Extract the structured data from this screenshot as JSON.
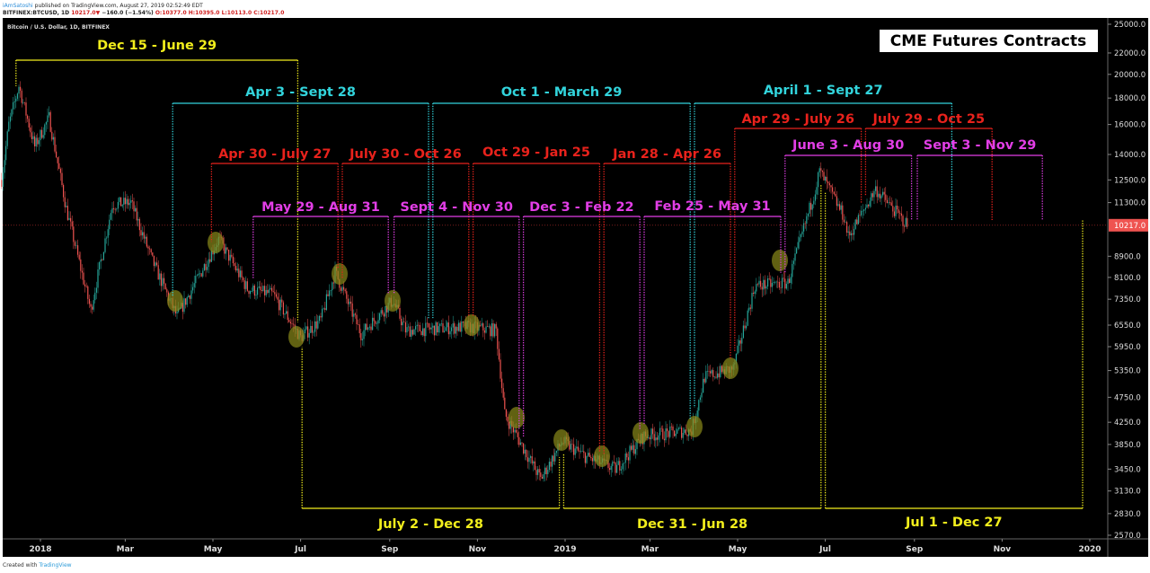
{
  "header": {
    "author": "iAmSatoshi",
    "published": "published on TradingView.com, August 27, 2019 02:52:49 EDT",
    "symbol": "BITFINEX:BTCUSD, 1D",
    "last": "10217.0",
    "change_arrow": "▼",
    "change": "−160.0 (−1.54%)",
    "ohlc": {
      "o": "O:10377.0",
      "h": "H:10395.0",
      "l": "L:10113.0",
      "c": "C:10217.0"
    }
  },
  "chart_title": "Bitcoin / U.S. Dollar, 1D, BITFINEX",
  "badge": "CME Futures Contracts",
  "footer": {
    "prefix": "Created with",
    "brand": "TradingView"
  },
  "colors": {
    "up": "#26a69a",
    "down": "#ef5350",
    "yellow": "#f2ee1c",
    "cyan": "#32d4dc",
    "red": "#e8221c",
    "magenta": "#e23ee6",
    "highlight": "#8a8a1a"
  },
  "chart_data": {
    "type": "candlestick",
    "scale": "log",
    "y_ticks": [
      25000,
      22000,
      20000,
      18000,
      16000,
      14000,
      12500,
      11300,
      8900,
      8100,
      7350,
      6550,
      5950,
      5350,
      4750,
      4250,
      3850,
      3450,
      3130,
      2830,
      2570
    ],
    "last_price": "10217.0",
    "x_ticks": [
      {
        "label": "2018",
        "date": "2018-01-01"
      },
      {
        "label": "Mar",
        "date": "2018-03-01"
      },
      {
        "label": "May",
        "date": "2018-05-01"
      },
      {
        "label": "Jul",
        "date": "2018-07-01"
      },
      {
        "label": "Sep",
        "date": "2018-09-01"
      },
      {
        "label": "Nov",
        "date": "2018-11-01"
      },
      {
        "label": "2019",
        "date": "2019-01-01"
      },
      {
        "label": "Mar",
        "date": "2019-03-01"
      },
      {
        "label": "May",
        "date": "2019-05-01"
      },
      {
        "label": "Jul",
        "date": "2019-07-01"
      },
      {
        "label": "Sep",
        "date": "2019-09-01"
      },
      {
        "label": "Nov",
        "date": "2019-11-01"
      },
      {
        "label": "2020",
        "date": "2020-01-01"
      }
    ],
    "approx_close": [
      [
        "2017-12-05",
        12500
      ],
      [
        "2017-12-10",
        16000
      ],
      [
        "2017-12-17",
        19000
      ],
      [
        "2017-12-28",
        14500
      ],
      [
        "2018-01-07",
        16500
      ],
      [
        "2018-01-19",
        11000
      ],
      [
        "2018-02-05",
        7000
      ],
      [
        "2018-02-20",
        11200
      ],
      [
        "2018-03-05",
        11300
      ],
      [
        "2018-03-20",
        8700
      ],
      [
        "2018-04-06",
        6800
      ],
      [
        "2018-05-05",
        9600
      ],
      [
        "2018-05-25",
        7700
      ],
      [
        "2018-06-12",
        7500
      ],
      [
        "2018-07-01",
        6200
      ],
      [
        "2018-07-15",
        6700
      ],
      [
        "2018-07-25",
        8300
      ],
      [
        "2018-08-12",
        6300
      ],
      [
        "2018-09-03",
        7300
      ],
      [
        "2018-09-12",
        6400
      ],
      [
        "2018-10-25",
        6500
      ],
      [
        "2018-11-14",
        6400
      ],
      [
        "2018-11-20",
        4400
      ],
      [
        "2018-12-15",
        3300
      ],
      [
        "2018-12-30",
        3900
      ],
      [
        "2019-01-15",
        3650
      ],
      [
        "2019-02-05",
        3450
      ],
      [
        "2019-02-25",
        4000
      ],
      [
        "2019-03-30",
        4100
      ],
      [
        "2019-04-08",
        5200
      ],
      [
        "2019-04-28",
        5400
      ],
      [
        "2019-05-13",
        7800
      ],
      [
        "2019-06-05",
        7900
      ],
      [
        "2019-06-24",
        12000
      ],
      [
        "2019-06-27",
        13000
      ],
      [
        "2019-07-14",
        10600
      ],
      [
        "2019-07-17",
        9700
      ],
      [
        "2019-08-05",
        12000
      ],
      [
        "2019-08-27",
        10217
      ]
    ],
    "annotations": [
      {
        "label": "Dec 15 - June 29",
        "start": "2017-12-15",
        "end": "2018-06-29",
        "color": "yellow"
      },
      {
        "label": "Apr 3 - Sept 28",
        "start": "2018-04-03",
        "end": "2018-09-28",
        "color": "cyan"
      },
      {
        "label": "Oct 1 - March 29",
        "start": "2018-10-01",
        "end": "2019-03-29",
        "color": "cyan"
      },
      {
        "label": "April 1 - Sept 27",
        "start": "2019-04-01",
        "end": "2019-09-27",
        "color": "cyan"
      },
      {
        "label": "Apr 30 - July 27",
        "start": "2018-04-30",
        "end": "2018-07-27",
        "color": "red"
      },
      {
        "label": "July 30 - Oct 26",
        "start": "2018-07-30",
        "end": "2018-10-26",
        "color": "red"
      },
      {
        "label": "Oct 29 - Jan 25",
        "start": "2018-10-29",
        "end": "2019-01-25",
        "color": "red"
      },
      {
        "label": "Jan 28 - Apr 26",
        "start": "2019-01-28",
        "end": "2019-04-26",
        "color": "red"
      },
      {
        "label": "Apr 29 - July 26",
        "start": "2019-04-29",
        "end": "2019-07-26",
        "color": "red"
      },
      {
        "label": "July 29 - Oct 25",
        "start": "2019-07-29",
        "end": "2019-10-25",
        "color": "red"
      },
      {
        "label": "May 29 - Aug 31",
        "start": "2018-05-29",
        "end": "2018-08-31",
        "color": "magenta"
      },
      {
        "label": "Sept 4 - Nov 30",
        "start": "2018-09-04",
        "end": "2018-11-30",
        "color": "magenta"
      },
      {
        "label": "Dec 3 - Feb 22",
        "start": "2018-12-03",
        "end": "2019-02-22",
        "color": "magenta"
      },
      {
        "label": "Feb 25 - May 31",
        "start": "2019-02-25",
        "end": "2019-05-31",
        "color": "magenta"
      },
      {
        "label": "June 3 - Aug 30",
        "start": "2019-06-03",
        "end": "2019-08-30",
        "color": "magenta"
      },
      {
        "label": "Sept 3 - Nov 29",
        "start": "2019-09-03",
        "end": "2019-11-29",
        "color": "magenta"
      },
      {
        "label": "July 2 - Dec 28",
        "start": "2018-07-02",
        "end": "2018-12-28",
        "color": "yellow"
      },
      {
        "label": "Dec 31 - Jun 28",
        "start": "2018-12-31",
        "end": "2019-06-28",
        "color": "yellow"
      },
      {
        "label": "Jul 1 - Dec 27",
        "start": "2019-07-01",
        "end": "2019-12-27",
        "color": "yellow"
      }
    ]
  }
}
